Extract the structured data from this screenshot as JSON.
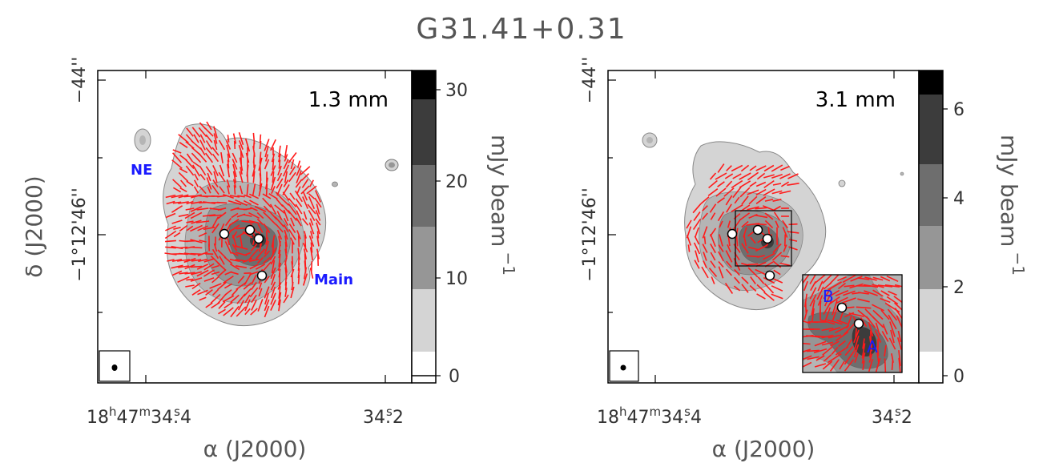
{
  "title": "G31.41+0.31",
  "colors": {
    "vector": "#ff1a1a",
    "label_blue": "#1a1aff",
    "gray_levels": [
      "#ffffff",
      "#d4d4d4",
      "#b5b5b5",
      "#969696",
      "#6e6e6e",
      "#3c3c3c",
      "#000000"
    ]
  },
  "chart_data": [
    {
      "type": "heatmap",
      "wavelength_label": "1.3 mm",
      "xlabel": "α (J2000)",
      "ylabel": "δ (J2000)",
      "x_ticks": [
        "18h47m34.4s",
        "34.2s"
      ],
      "x_tick_parts": [
        {
          "main": "18",
          "sup1": "h",
          "mid1": "47",
          "sup2": "m",
          "mid2": "34.",
          "sup3": "s",
          "tail": "4"
        },
        {
          "main": "",
          "sup1": "",
          "mid1": "",
          "sup2": "",
          "mid2": "34.",
          "sup3": "s",
          "tail": "2"
        }
      ],
      "y_ticks": [
        "−44''",
        "−1°12'46''"
      ],
      "colorbar": {
        "label": "mJy beam",
        "exponent": "−1",
        "range": [
          0,
          32
        ],
        "ticks": [
          "0",
          "10",
          "20",
          "30"
        ]
      },
      "region_labels": [
        "NE",
        "Main"
      ],
      "features": "polarization vectors in red; continuum contours in gray; white circles mark embedded sources; beam shown at lower left"
    },
    {
      "type": "heatmap",
      "wavelength_label": "3.1 mm",
      "xlabel": "α (J2000)",
      "ylabel": "δ (J2000)",
      "x_ticks": [
        "18h47m34.4s",
        "34.2s"
      ],
      "x_tick_parts": [
        {
          "main": "18",
          "sup1": "h",
          "mid1": "47",
          "sup2": "m",
          "mid2": "34.",
          "sup3": "s",
          "tail": "4"
        },
        {
          "main": "",
          "sup1": "",
          "mid1": "",
          "sup2": "",
          "mid2": "34.",
          "sup3": "s",
          "tail": "2"
        }
      ],
      "y_ticks": [
        "−44''",
        "−1°12'46''"
      ],
      "colorbar": {
        "label": "mJy beam",
        "exponent": "−1",
        "range": [
          0,
          7
        ],
        "ticks": [
          "0",
          "2",
          "4",
          "6"
        ]
      },
      "inset_labels": [
        "B",
        "A"
      ],
      "features": "polarization vectors in red; inset zoom of central region with sources A and B"
    }
  ]
}
